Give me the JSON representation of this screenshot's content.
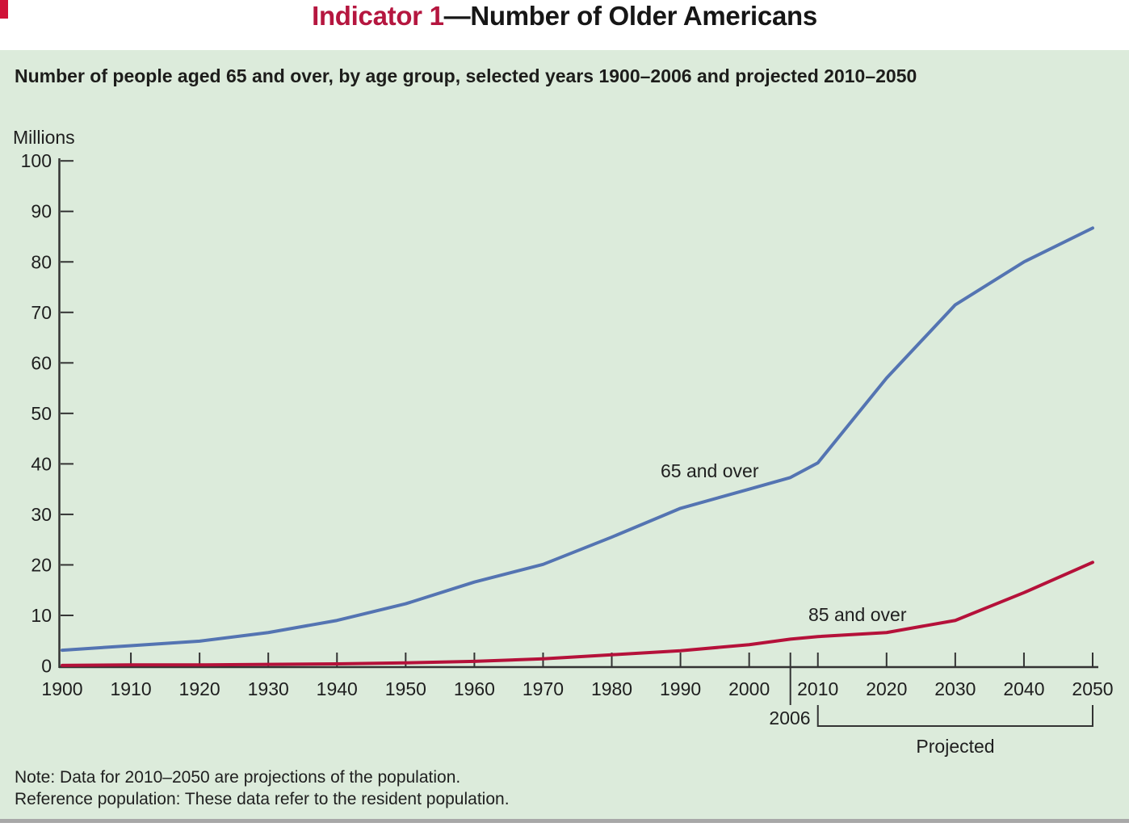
{
  "header": {
    "title_prefix": "Indicator 1",
    "title_rest": "—Number of Older Americans"
  },
  "notes": {
    "line1": "Note: Data for 2010–2050 are projections of the population.",
    "line2": "Reference population: These data refer to the resident population."
  },
  "colors": {
    "panel_bg": "#dcebdb",
    "title_accent": "#b5163f",
    "line_65_and_over": "#5474b2",
    "line_85_and_over": "#b5113a",
    "axis": "#333333",
    "bottom_border": "#a8a8a8",
    "corner_mark": "#d01238"
  },
  "chart_data": {
    "type": "line",
    "title": "Number of people aged 65 and over, by age group, selected years 1900–2006 and projected 2010–2050",
    "unit_label": "Millions",
    "ylabel": "Millions",
    "xlabel": "",
    "ylim": [
      0,
      100
    ],
    "xlim": [
      1900,
      2050
    ],
    "grid": false,
    "legend": "inline-labels",
    "y_ticks": [
      0,
      10,
      20,
      30,
      40,
      50,
      60,
      70,
      80,
      90,
      100
    ],
    "x_tick_labels": [
      1900,
      1910,
      1920,
      1930,
      1940,
      1950,
      1960,
      1970,
      1980,
      1990,
      2000,
      2010,
      2020,
      2030,
      2040,
      2050
    ],
    "x_special_tick": 2006,
    "x_special_tick_label": "2006",
    "projected_range": [
      2010,
      2050
    ],
    "annotations": {
      "projected": "Projected"
    },
    "x": [
      1900,
      1910,
      1920,
      1930,
      1940,
      1950,
      1960,
      1970,
      1980,
      1990,
      2000,
      2006,
      2010,
      2020,
      2030,
      2040,
      2050
    ],
    "series": [
      {
        "name": "65 and over",
        "color": "#5474b2",
        "values": [
          3.1,
          4.0,
          4.9,
          6.6,
          9.0,
          12.3,
          16.6,
          20.1,
          25.5,
          31.2,
          35.0,
          37.3,
          40.2,
          57.0,
          71.5,
          80.0,
          86.7
        ]
      },
      {
        "name": "85 and over",
        "color": "#b5113a",
        "values": [
          0.1,
          0.2,
          0.2,
          0.3,
          0.4,
          0.6,
          0.9,
          1.4,
          2.2,
          3.0,
          4.2,
          5.3,
          5.8,
          6.6,
          9.0,
          14.5,
          20.5
        ]
      }
    ]
  }
}
